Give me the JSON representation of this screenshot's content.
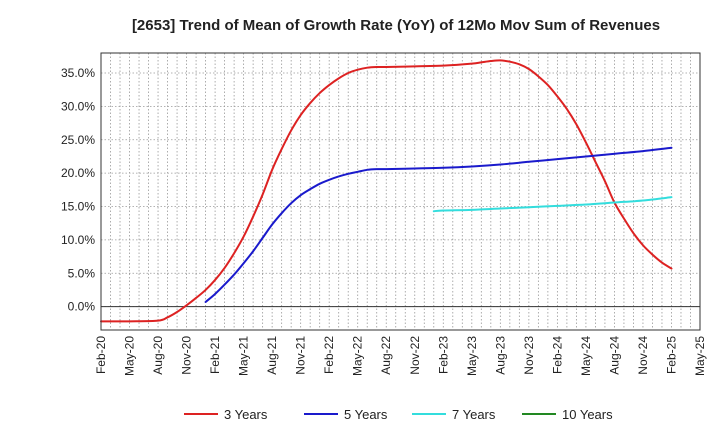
{
  "chart_data": {
    "type": "line",
    "title": "[2653]  Trend of Mean of Growth Rate (YoY) of 12Mo Mov Sum of Revenues",
    "xlabel": "",
    "ylabel": "",
    "x_ticks": [
      "Feb-20",
      "May-20",
      "Aug-20",
      "Nov-20",
      "Feb-21",
      "May-21",
      "Aug-21",
      "Nov-21",
      "Feb-22",
      "May-22",
      "Aug-22",
      "Nov-22",
      "Feb-23",
      "May-23",
      "Aug-23",
      "Nov-23",
      "Feb-24",
      "May-24",
      "Aug-24",
      "Nov-24",
      "Feb-25",
      "May-25"
    ],
    "y_ticks": [
      0,
      5,
      10,
      15,
      20,
      25,
      30,
      35
    ],
    "y_tick_labels": [
      "0.0%",
      "5.0%",
      "10.0%",
      "15.0%",
      "20.0%",
      "25.0%",
      "30.0%",
      "35.0%"
    ],
    "ylim": [
      -3.5,
      38.0
    ],
    "xlim": [
      "Feb-20",
      "May-25"
    ],
    "grid": true,
    "legend_position": "bottom",
    "series": [
      {
        "name": "3 Years",
        "color": "#dd2222",
        "x": [
          "Feb-20",
          "May-20",
          "Aug-20",
          "Sep-20",
          "Oct-20",
          "Nov-20",
          "Dec-20",
          "Jan-21",
          "Feb-21",
          "Mar-21",
          "Apr-21",
          "May-21",
          "Jun-21",
          "Jul-21",
          "Aug-21",
          "Sep-21",
          "Oct-21",
          "Nov-21",
          "Dec-21",
          "Jan-22",
          "Feb-22",
          "Mar-22",
          "Apr-22",
          "May-22",
          "Jun-22",
          "Jul-22",
          "Aug-22",
          "Nov-22",
          "Feb-23",
          "May-23",
          "Jun-23",
          "Jul-23",
          "Aug-23",
          "Sep-23",
          "Oct-23",
          "Nov-23",
          "Dec-23",
          "Jan-24",
          "Feb-24",
          "Mar-24",
          "Apr-24",
          "May-24",
          "Jun-24",
          "Jul-24",
          "Aug-24",
          "Sep-24",
          "Oct-24",
          "Nov-24",
          "Dec-24",
          "Jan-25",
          "Feb-25"
        ],
        "values": [
          -2.2,
          -2.2,
          -2.1,
          -1.6,
          -0.8,
          0.2,
          1.3,
          2.5,
          4.0,
          5.8,
          8.0,
          10.5,
          13.5,
          16.8,
          20.5,
          23.6,
          26.4,
          28.7,
          30.5,
          32.0,
          33.2,
          34.2,
          35.0,
          35.5,
          35.8,
          35.9,
          35.9,
          36.0,
          36.1,
          36.4,
          36.6,
          36.8,
          36.9,
          36.7,
          36.3,
          35.6,
          34.5,
          33.2,
          31.5,
          29.6,
          27.3,
          24.6,
          21.7,
          18.8,
          15.6,
          13.2,
          11.0,
          9.2,
          7.8,
          6.6,
          5.7
        ]
      },
      {
        "name": "5 Years",
        "color": "#1a1acc",
        "x": [
          "Jan-21",
          "Feb-21",
          "Mar-21",
          "Apr-21",
          "May-21",
          "Jun-21",
          "Jul-21",
          "Aug-21",
          "Sep-21",
          "Oct-21",
          "Nov-21",
          "Dec-21",
          "Jan-22",
          "Feb-22",
          "Mar-22",
          "Apr-22",
          "May-22",
          "Jun-22",
          "Jul-22",
          "Aug-22",
          "Nov-22",
          "Feb-23",
          "May-23",
          "Aug-23",
          "Nov-23",
          "Feb-24",
          "May-24",
          "Aug-24",
          "Nov-24",
          "Feb-25"
        ],
        "values": [
          0.7,
          1.9,
          3.3,
          4.8,
          6.5,
          8.3,
          10.3,
          12.3,
          14.0,
          15.5,
          16.7,
          17.6,
          18.4,
          19.0,
          19.5,
          19.9,
          20.2,
          20.5,
          20.6,
          20.6,
          20.7,
          20.8,
          21.0,
          21.3,
          21.7,
          22.1,
          22.5,
          22.9,
          23.3,
          23.8
        ]
      },
      {
        "name": "7 Years",
        "color": "#33dddd",
        "x": [
          "Jan-23",
          "Feb-23",
          "May-23",
          "Aug-23",
          "Nov-23",
          "Feb-24",
          "May-24",
          "Aug-24",
          "Nov-24",
          "Feb-25"
        ],
        "values": [
          14.3,
          14.4,
          14.5,
          14.7,
          14.9,
          15.1,
          15.3,
          15.6,
          15.9,
          16.4
        ]
      },
      {
        "name": "10 Years",
        "color": "#228822",
        "x": [],
        "values": []
      }
    ]
  }
}
